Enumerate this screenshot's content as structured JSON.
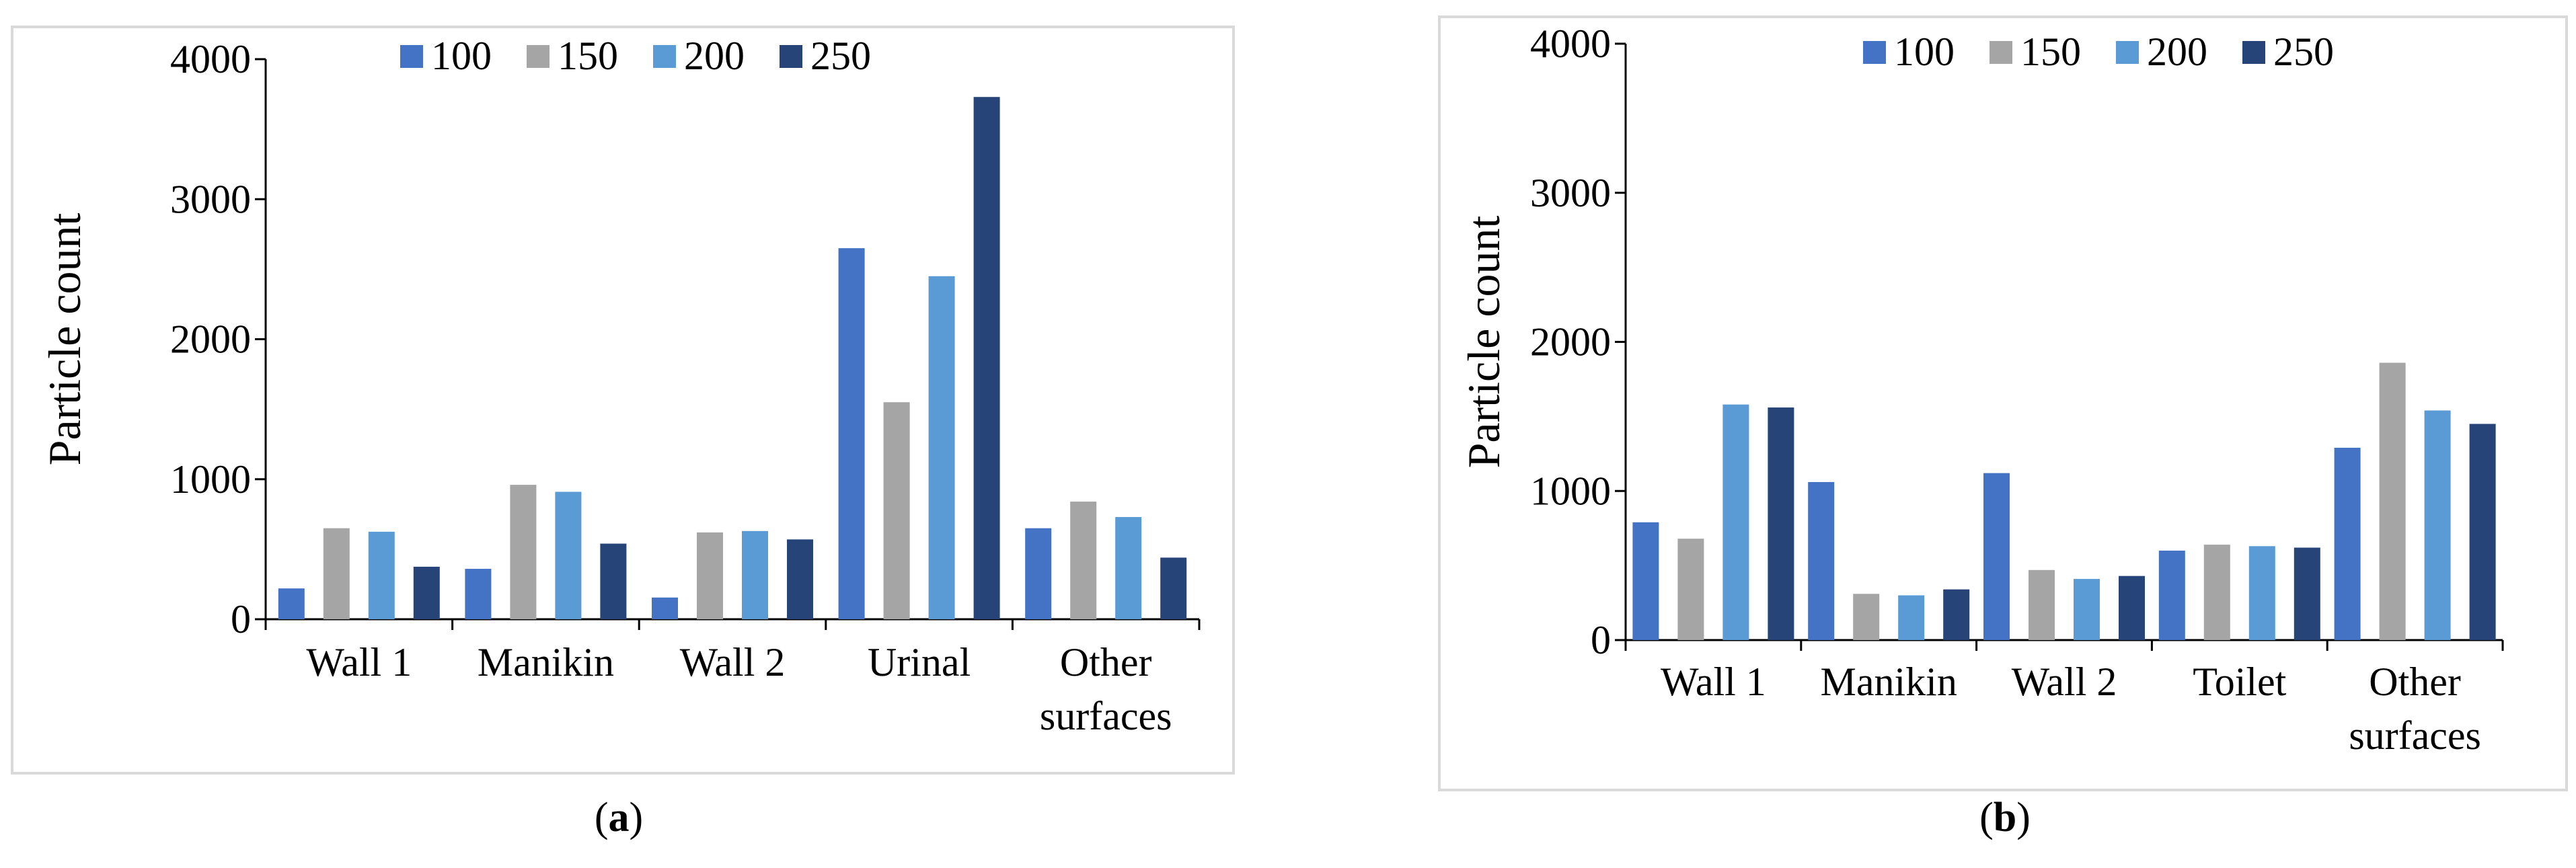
{
  "figure": {
    "captions": [
      {
        "open": "(",
        "letter": "a",
        "close": ")"
      },
      {
        "open": "(",
        "letter": "b",
        "close": ")"
      }
    ]
  },
  "chart_data": [
    {
      "type": "bar",
      "panel": "a",
      "ylabel": "Particle count",
      "xlabel": "",
      "ylim": [
        0,
        4000
      ],
      "yticks": [
        "0",
        "1000",
        "2000",
        "3000",
        "4000"
      ],
      "grid": false,
      "legend_position": "top-center",
      "categories": [
        [
          "Wall 1"
        ],
        [
          "Manikin"
        ],
        [
          "Wall 2"
        ],
        [
          "Urinal"
        ],
        [
          "Other",
          "surfaces"
        ]
      ],
      "series": [
        {
          "name": "100",
          "color": "#4472C4",
          "values": [
            220,
            360,
            155,
            2650,
            650
          ]
        },
        {
          "name": "150",
          "color": "#A5A5A5",
          "values": [
            650,
            960,
            620,
            1550,
            840
          ]
        },
        {
          "name": "200",
          "color": "#5B9BD5",
          "values": [
            625,
            910,
            630,
            2450,
            730
          ]
        },
        {
          "name": "250",
          "color": "#264478",
          "values": [
            375,
            540,
            570,
            3730,
            440
          ]
        }
      ]
    },
    {
      "type": "bar",
      "panel": "b",
      "ylabel": "Particle count",
      "xlabel": "",
      "ylim": [
        0,
        4000
      ],
      "yticks": [
        "0",
        "1000",
        "2000",
        "3000",
        "4000"
      ],
      "grid": false,
      "legend_position": "top-center",
      "categories": [
        [
          "Wall 1"
        ],
        [
          "Manikin"
        ],
        [
          "Wall 2"
        ],
        [
          "Toilet"
        ],
        [
          "Other",
          "surfaces"
        ]
      ],
      "series": [
        {
          "name": "100",
          "color": "#4472C4",
          "values": [
            790,
            1060,
            1120,
            600,
            1290
          ]
        },
        {
          "name": "150",
          "color": "#A5A5A5",
          "values": [
            680,
            310,
            470,
            640,
            1860
          ]
        },
        {
          "name": "200",
          "color": "#5B9BD5",
          "values": [
            1580,
            300,
            410,
            630,
            1540
          ]
        },
        {
          "name": "250",
          "color": "#264478",
          "values": [
            1560,
            340,
            430,
            620,
            1450
          ]
        }
      ]
    }
  ]
}
